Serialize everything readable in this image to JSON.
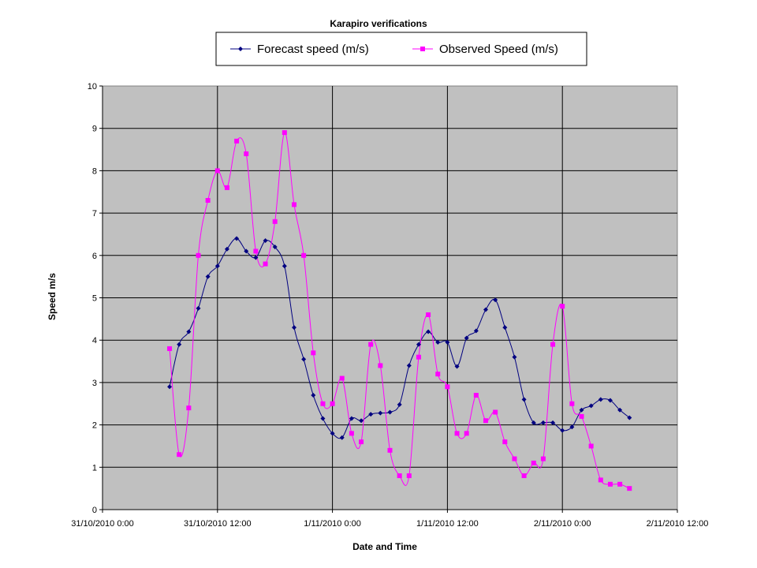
{
  "chart_data": {
    "type": "line",
    "title": "Karapiro verifications",
    "xlabel": "Date and Time",
    "ylabel": "Speed m/s",
    "ylim": [
      0,
      10
    ],
    "yticks": [
      0,
      1,
      2,
      3,
      4,
      5,
      6,
      7,
      8,
      9,
      10
    ],
    "xlim": [
      "31/10/2010 0:00",
      "2/11/2010 12:00"
    ],
    "xticks": [
      "31/10/2010 0:00",
      "31/10/2010 12:00",
      "1/11/2010 0:00",
      "1/11/2010 12:00",
      "2/11/2010 0:00",
      "2/11/2010 12:00"
    ],
    "grid": true,
    "legend": "top",
    "x": [
      "31/10/2010 7:00",
      "31/10/2010 8:00",
      "31/10/2010 9:00",
      "31/10/2010 10:00",
      "31/10/2010 11:00",
      "31/10/2010 12:00",
      "31/10/2010 13:00",
      "31/10/2010 14:00",
      "31/10/2010 15:00",
      "31/10/2010 16:00",
      "31/10/2010 17:00",
      "31/10/2010 18:00",
      "31/10/2010 19:00",
      "31/10/2010 20:00",
      "31/10/2010 21:00",
      "31/10/2010 22:00",
      "31/10/2010 23:00",
      "1/11/2010 0:00",
      "1/11/2010 1:00",
      "1/11/2010 2:00",
      "1/11/2010 3:00",
      "1/11/2010 4:00",
      "1/11/2010 5:00",
      "1/11/2010 6:00",
      "1/11/2010 7:00",
      "1/11/2010 8:00",
      "1/11/2010 9:00",
      "1/11/2010 10:00",
      "1/11/2010 11:00",
      "1/11/2010 12:00",
      "1/11/2010 13:00",
      "1/11/2010 14:00",
      "1/11/2010 15:00",
      "1/11/2010 16:00",
      "1/11/2010 17:00",
      "1/11/2010 18:00",
      "1/11/2010 19:00",
      "1/11/2010 20:00",
      "1/11/2010 21:00",
      "1/11/2010 22:00",
      "1/11/2010 23:00",
      "2/11/2010 0:00",
      "2/11/2010 1:00",
      "2/11/2010 2:00",
      "2/11/2010 3:00",
      "2/11/2010 4:00",
      "2/11/2010 5:00",
      "2/11/2010 6:00",
      "2/11/2010 7:00"
    ],
    "series": [
      {
        "name": "Forecast speed (m/s)",
        "color": "#000080",
        "marker": "diamond",
        "values": [
          2.9,
          3.9,
          4.2,
          4.75,
          5.5,
          5.75,
          6.15,
          6.4,
          6.1,
          5.95,
          6.35,
          6.2,
          5.75,
          4.3,
          3.55,
          2.7,
          2.15,
          1.8,
          1.7,
          2.15,
          2.1,
          2.25,
          2.28,
          2.3,
          2.48,
          3.4,
          3.9,
          4.2,
          3.95,
          3.95,
          3.38,
          4.05,
          4.22,
          4.72,
          4.95,
          4.3,
          3.6,
          2.6,
          2.05,
          2.05,
          2.05,
          1.87,
          1.95,
          2.35,
          2.45,
          2.6,
          2.58,
          2.35,
          2.17
        ]
      },
      {
        "name": "Observed Speed (m/s)",
        "color": "#ff00ff",
        "marker": "square",
        "values": [
          3.8,
          1.3,
          2.4,
          6.0,
          7.3,
          8.0,
          7.6,
          8.7,
          8.4,
          6.1,
          5.8,
          6.8,
          8.9,
          7.2,
          6.0,
          3.7,
          2.5,
          2.5,
          3.1,
          1.8,
          1.6,
          3.9,
          3.4,
          1.4,
          0.8,
          0.8,
          3.6,
          4.6,
          3.2,
          2.9,
          1.8,
          1.8,
          2.7,
          2.1,
          2.3,
          1.6,
          1.2,
          0.8,
          1.1,
          1.2,
          3.9,
          4.8,
          2.5,
          2.2,
          1.5,
          0.7,
          0.6,
          0.6,
          0.5
        ]
      }
    ]
  }
}
